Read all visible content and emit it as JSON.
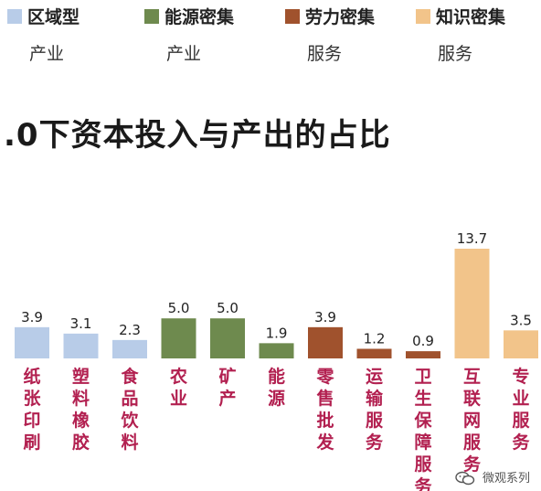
{
  "title": ".0下资本投入与产出的占比",
  "legend": [
    {
      "line1": "区域型",
      "line2": "产业",
      "color": "#b8cce8",
      "icon": "square-swatch"
    },
    {
      "line1": "能源密集",
      "line2": "产业",
      "color": "#6e8a4e",
      "icon": "square-swatch"
    },
    {
      "line1": "劳力密集",
      "line2": "服务",
      "color": "#a0522d",
      "icon": "square-swatch"
    },
    {
      "line1": "知识密集",
      "line2": "服务",
      "color": "#f2c48a",
      "icon": "square-swatch"
    }
  ],
  "watermark": {
    "text": "微观系列",
    "icon": "wechat-icon"
  },
  "chart_data": {
    "type": "bar",
    "title": ".0下资本投入与产出的占比",
    "categories": [
      "纸张印刷",
      "塑料橡胶",
      "食品饮料",
      "农业",
      "矿产",
      "能源",
      "零售批发",
      "运输服务",
      "卫生保障服务",
      "互联网服务",
      "专业服务"
    ],
    "values": [
      3.9,
      3.1,
      2.3,
      5.0,
      5.0,
      1.9,
      3.9,
      1.2,
      0.9,
      13.7,
      3.5
    ],
    "value_labels": [
      "3.9",
      "3.1",
      "2.3",
      "5.0",
      "5.0",
      "1.9",
      "3.9",
      "1.2",
      "0.9",
      "13.7",
      "3.5"
    ],
    "groups": [
      0,
      0,
      0,
      1,
      1,
      1,
      2,
      2,
      2,
      3,
      3
    ],
    "group_colors": [
      "#b8cce8",
      "#6e8a4e",
      "#a0522d",
      "#f2c48a"
    ],
    "label_color": "#b22050",
    "ylim": [
      0,
      13.7
    ],
    "grid": false,
    "legend_position": "top"
  }
}
